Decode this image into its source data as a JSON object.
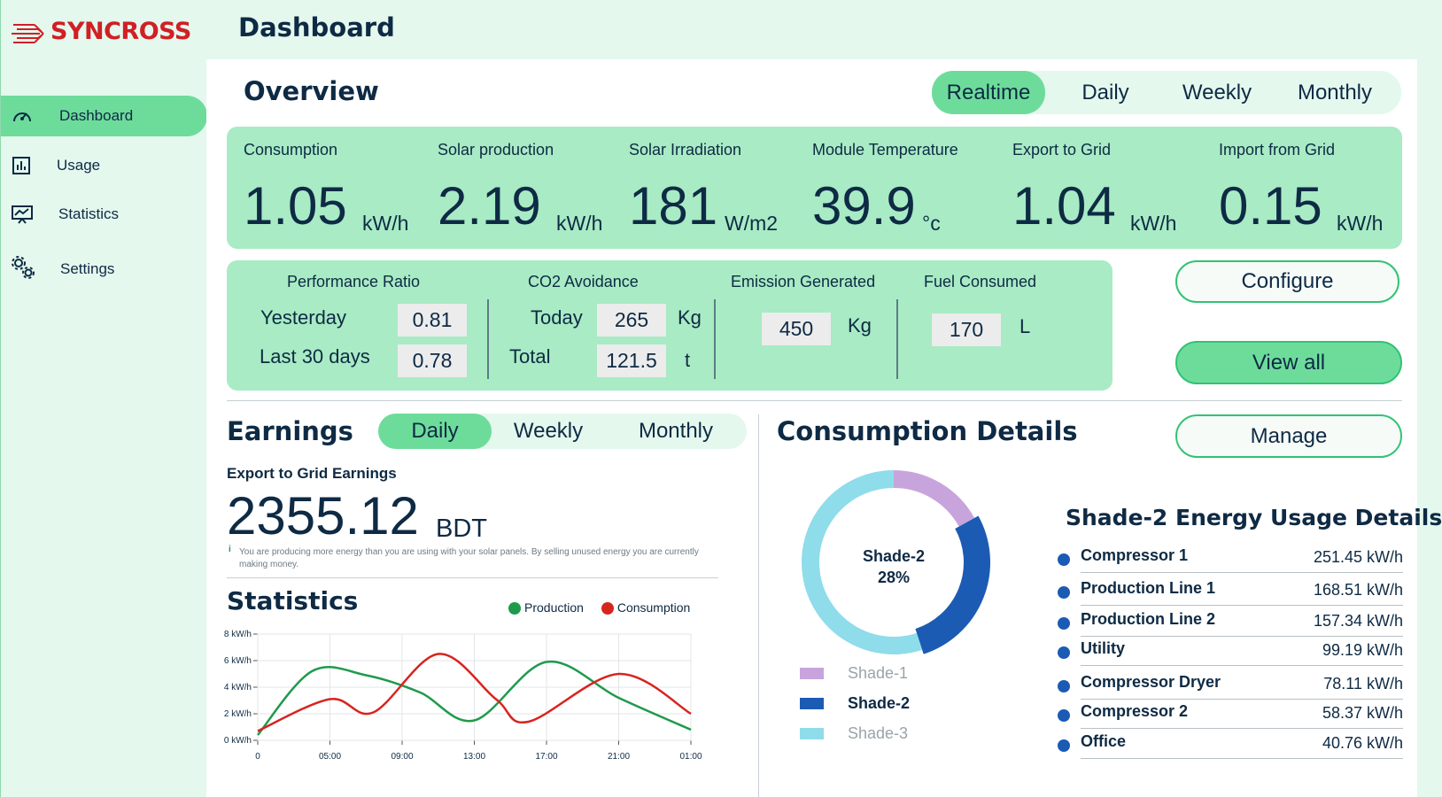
{
  "brand": {
    "name": "SYNCROSS",
    "accent": "#d11f24"
  },
  "header": {
    "title": "Dashboard"
  },
  "sidebar": {
    "items": [
      {
        "label": "Dashboard",
        "icon": "gauge-icon",
        "active": true
      },
      {
        "label": "Usage",
        "icon": "bar-chart-icon",
        "active": false
      },
      {
        "label": "Statistics",
        "icon": "presentation-chart-icon",
        "active": false
      },
      {
        "label": "Settings",
        "icon": "gears-icon",
        "active": false
      }
    ]
  },
  "overview": {
    "title": "Overview",
    "ranges": [
      "Realtime",
      "Daily",
      "Weekly",
      "Monthly"
    ],
    "selected_range": "Realtime",
    "metrics": [
      {
        "label": "Consumption",
        "value": "1.05",
        "unit": "kW/h"
      },
      {
        "label": "Solar production",
        "value": "2.19",
        "unit": "kW/h"
      },
      {
        "label": "Solar Irradiation",
        "value": "181",
        "unit": "W/m2"
      },
      {
        "label": "Module Temperature",
        "value": "39.9",
        "unit": "°c"
      },
      {
        "label": "Export to Grid",
        "value": "1.04",
        "unit": "kW/h"
      },
      {
        "label": "Import from Grid",
        "value": "0.15",
        "unit": "kW/h"
      }
    ]
  },
  "performance": {
    "ratio": {
      "title": "Performance Ratio",
      "rows": [
        {
          "label": "Yesterday",
          "value": "0.81"
        },
        {
          "label": "Last 30 days",
          "value": "0.78"
        }
      ]
    },
    "co2": {
      "title": "CO2 Avoidance",
      "rows": [
        {
          "label": "Today",
          "value": "265",
          "unit": "Kg"
        },
        {
          "label": "Total",
          "value": "121.5",
          "unit": "t"
        }
      ]
    },
    "emission": {
      "title": "Emission Generated",
      "value": "450",
      "unit": "Kg"
    },
    "fuel": {
      "title": "Fuel Consumed",
      "value": "170",
      "unit": "L"
    }
  },
  "actions": {
    "configure": "Configure",
    "view_all": "View all",
    "manage": "Manage"
  },
  "earnings": {
    "title": "Earnings",
    "ranges": [
      "Daily",
      "Weekly",
      "Monthly"
    ],
    "selected_range": "Daily",
    "subtitle": "Export to Grid Earnings",
    "value": "2355.12",
    "currency": "BDT",
    "info_icon": "info-icon",
    "note": "You are producing more energy than you are using with your solar panels. By selling unused energy you are currently making money."
  },
  "statistics": {
    "title": "Statistics",
    "legend": [
      {
        "name": "Production",
        "color": "#1f9a4c"
      },
      {
        "name": "Consumption",
        "color": "#d8241f"
      }
    ]
  },
  "chart_data": [
    {
      "type": "line",
      "title": "Statistics",
      "x": [
        "0",
        "05:00",
        "09:00",
        "13:00",
        "17:00",
        "21:00",
        "01:00"
      ],
      "xlim": [
        0,
        6
      ],
      "ylim": [
        0,
        8
      ],
      "yticks": [
        "0 kW/h",
        "2 kW/h",
        "4 kW/h",
        "6 kW/h",
        "8 kW/h"
      ],
      "grid": true,
      "legend": "top-right",
      "series": [
        {
          "name": "Production",
          "color": "#1f9a4c",
          "points": [
            [
              0,
              0.4
            ],
            [
              0.75,
              5.2
            ],
            [
              1.5,
              4.9
            ],
            [
              2.25,
              3.6
            ],
            [
              3.0,
              1.5
            ],
            [
              4.0,
              5.9
            ],
            [
              5.0,
              3.2
            ],
            [
              6.0,
              0.8
            ]
          ]
        },
        {
          "name": "Consumption",
          "color": "#d8241f",
          "points": [
            [
              0,
              0.7
            ],
            [
              1.0,
              3.1
            ],
            [
              1.6,
              2.1
            ],
            [
              2.5,
              6.5
            ],
            [
              3.3,
              3.1
            ],
            [
              3.75,
              1.4
            ],
            [
              5.0,
              5.0
            ],
            [
              6.0,
              2.0
            ]
          ]
        }
      ]
    },
    {
      "type": "pie",
      "title": "Consumption Details",
      "center_label": "Shade-2",
      "center_value": "28%",
      "labels": [
        "Shade-1",
        "Shade-2",
        "Shade-3"
      ],
      "values": [
        17,
        28,
        55
      ],
      "colors": [
        "#c8a4dc",
        "#1c5bb3",
        "#8fdceb"
      ],
      "highlight": "Shade-2"
    }
  ],
  "consumption": {
    "title": "Consumption Details",
    "details_title": "Shade-2 Energy Usage Details",
    "items": [
      {
        "name": "Compressor 1",
        "value": "251.45 kW/h"
      },
      {
        "name": "Production Line 1",
        "value": "168.51 kW/h"
      },
      {
        "name": "Production Line 2",
        "value": "157.34 kW/h"
      },
      {
        "name": "Utility",
        "value": "99.19 kW/h"
      },
      {
        "name": "Compressor Dryer",
        "value": "78.11 kW/h"
      },
      {
        "name": "Compressor 2",
        "value": "58.37 kW/h"
      },
      {
        "name": "Office",
        "value": "40.76 kW/h"
      }
    ]
  }
}
